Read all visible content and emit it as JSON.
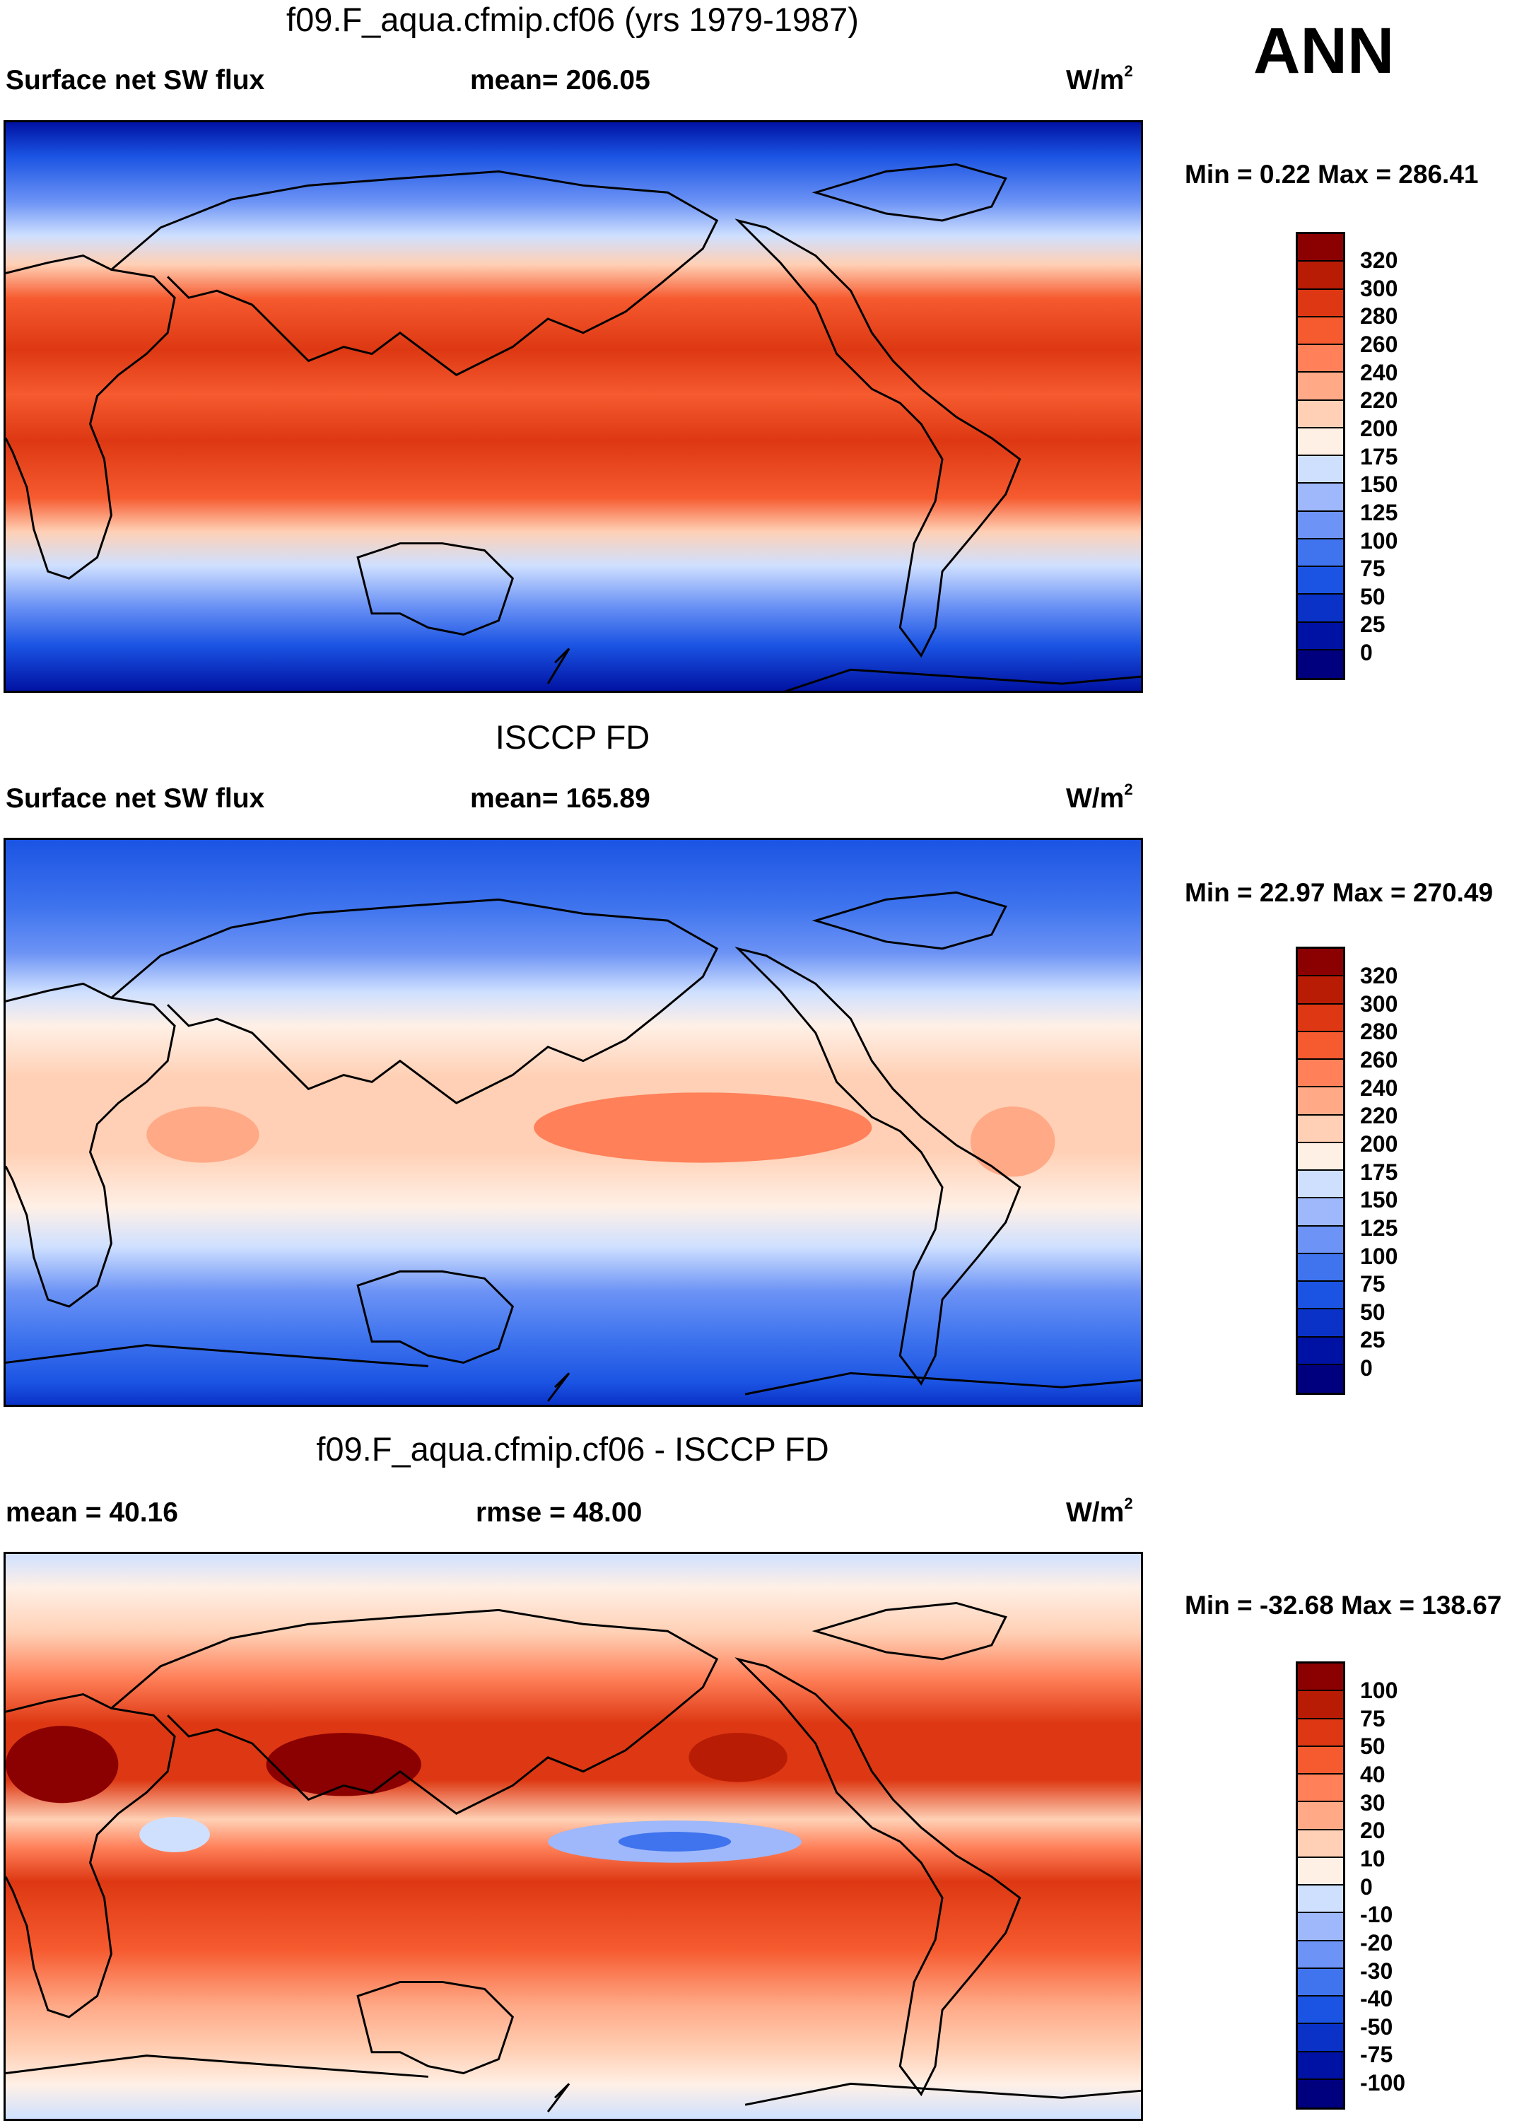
{
  "season": "ANN",
  "palettes": {
    "abs": [
      "#00007f",
      "#0012a3",
      "#0a32c7",
      "#1b54e3",
      "#3f74ee",
      "#6c93f5",
      "#9eb8fb",
      "#cfe0ff",
      "#fff0e6",
      "#ffd0b5",
      "#ffa987",
      "#ff8059",
      "#f65a2f",
      "#dd3813",
      "#b81c05",
      "#8b0000"
    ],
    "diff": [
      "#00007f",
      "#0012a3",
      "#0a32c7",
      "#1b54e3",
      "#3f74ee",
      "#6c93f5",
      "#9eb8fb",
      "#cfe0ff",
      "#fff0e6",
      "#ffd0b5",
      "#ffa987",
      "#ff8059",
      "#f65a2f",
      "#dd3813",
      "#b81c05",
      "#8b0000"
    ]
  },
  "panels": [
    {
      "title": "f09.F_aqua.cfmip.cf06 (yrs 1979-1987)",
      "left_label": "Surface net SW flux",
      "center_label": "mean= 206.05",
      "units": "W/m",
      "units_sup": "2",
      "minmax": "Min =   0.22 Max = 286.41",
      "colorbar_ticks": [
        "320",
        "300",
        "280",
        "260",
        "240",
        "220",
        "200",
        "175",
        "150",
        "125",
        "100",
        "75",
        "50",
        "25",
        "0"
      ]
    },
    {
      "title": "ISCCP FD",
      "left_label": "Surface net SW flux",
      "center_label": "mean= 165.89",
      "units": "W/m",
      "units_sup": "2",
      "minmax": "Min =  22.97 Max = 270.49",
      "colorbar_ticks": [
        "320",
        "300",
        "280",
        "260",
        "240",
        "220",
        "200",
        "175",
        "150",
        "125",
        "100",
        "75",
        "50",
        "25",
        "0"
      ]
    },
    {
      "title": "f09.F_aqua.cfmip.cf06 - ISCCP FD",
      "left_label": "mean =  40.16",
      "center_label": "rmse =  48.00",
      "units": "W/m",
      "units_sup": "2",
      "minmax": "Min = -32.68 Max = 138.67",
      "colorbar_ticks": [
        "100",
        "75",
        "50",
        "40",
        "30",
        "20",
        "10",
        "0",
        "-10",
        "-20",
        "-30",
        "-40",
        "-50",
        "-75",
        "-100"
      ]
    }
  ]
}
